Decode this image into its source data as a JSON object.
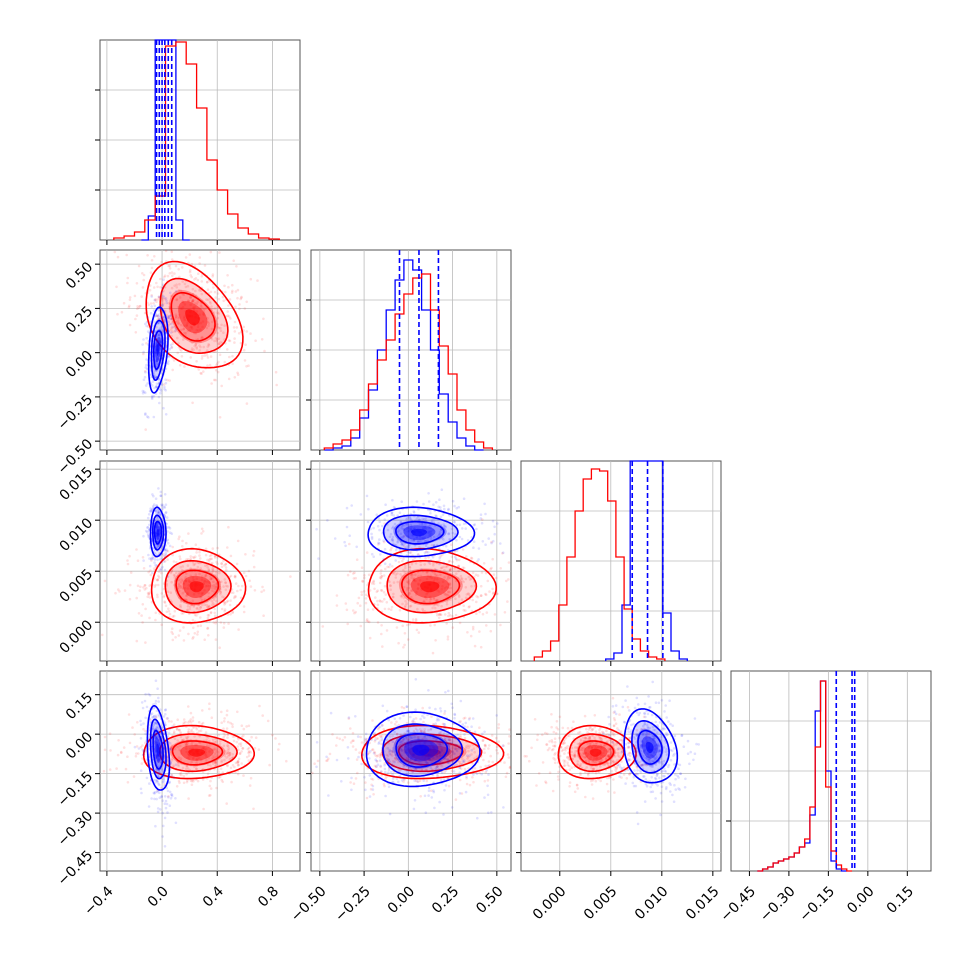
{
  "chart_data": {
    "type": "corner",
    "grid": true,
    "series": [
      {
        "color": "#ff0000"
      },
      {
        "color": "#0000ff"
      }
    ],
    "params": [
      {
        "range": [
          -0.45,
          1.0
        ],
        "ticks": [
          "−0.4",
          "0.0",
          "0.4",
          "0.8"
        ],
        "tick_values": [
          -0.4,
          0.0,
          0.4,
          0.8
        ],
        "hist": {
          "red": {
            "edges_start": -0.35,
            "bin": 0.075,
            "counts": [
              0.01,
              0.02,
              0.04,
              0.1,
              0.22,
              0.97,
              0.99,
              0.88,
              0.66,
              0.4,
              0.25,
              0.13,
              0.06,
              0.03,
              0.01,
              0.005
            ]
          },
          "blue": {
            "edges_start": -0.15,
            "bin": 0.05,
            "counts": [
              0.0,
              0.12,
              1.05,
              1.05,
              1.05,
              0.1,
              0.0
            ]
          }
        },
        "quantiles": [
          -0.04,
          -0.02,
          0.0,
          0.02,
          0.045,
          0.07
        ]
      },
      {
        "range": [
          -0.55,
          0.58
        ],
        "ticks": [
          "−0.50",
          "−0.25",
          "0.00",
          "0.25",
          "0.50"
        ],
        "tick_values": [
          -0.5,
          -0.25,
          0.0,
          0.25,
          0.5
        ],
        "hist": {
          "red": {
            "edges_start": -0.475,
            "bin": 0.05,
            "counts": [
              0.01,
              0.03,
              0.05,
              0.1,
              0.2,
              0.33,
              0.45,
              0.55,
              0.68,
              0.78,
              0.86,
              0.88,
              0.7,
              0.52,
              0.38,
              0.2,
              0.1,
              0.04,
              0.01
            ]
          },
          "blue": {
            "edges_start": -0.475,
            "bin": 0.05,
            "counts": [
              0.0,
              0.01,
              0.02,
              0.06,
              0.16,
              0.3,
              0.5,
              0.7,
              0.85,
              0.95,
              0.9,
              0.7,
              0.5,
              0.28,
              0.14,
              0.06,
              0.02,
              0.0
            ]
          }
        },
        "quantiles": [
          -0.05,
          0.06,
          0.17
        ]
      },
      {
        "range": [
          -0.0038,
          0.0158
        ],
        "ticks": [
          "0.000",
          "0.005",
          "0.010",
          "0.015"
        ],
        "tick_values": [
          0.0,
          0.005,
          0.01,
          0.015
        ],
        "hist": {
          "red": {
            "edges_start": -0.0025,
            "bin": 0.0008,
            "counts": [
              0.02,
              0.05,
              0.1,
              0.28,
              0.52,
              0.75,
              0.91,
              0.96,
              0.95,
              0.8,
              0.52,
              0.26,
              0.11,
              0.05,
              0.02,
              0.01
            ]
          },
          "blue": {
            "edges_start": 0.0045,
            "bin": 0.0008,
            "counts": [
              0.01,
              0.04,
              0.28,
              1.02,
              1.02,
              1.02,
              1.02,
              0.24,
              0.05,
              0.01
            ]
          }
        },
        "quantiles": [
          0.0071,
          0.0086,
          0.0101
        ]
      },
      {
        "range": [
          -0.52,
          0.24
        ],
        "ticks": [
          "−0.45",
          "−0.30",
          "−0.15",
          "0.00",
          "0.15"
        ],
        "tick_values": [
          -0.45,
          -0.3,
          -0.15,
          0.0,
          0.15
        ],
        "hist": {
          "red": {
            "edges_start": -0.42,
            "bin": 0.02,
            "counts": [
              0.0,
              0.01,
              0.02,
              0.04,
              0.05,
              0.06,
              0.07,
              0.09,
              0.12,
              0.16,
              0.32,
              0.62,
              0.95,
              0.42,
              0.1,
              0.03,
              0.01,
              0.0
            ]
          },
          "blue": {
            "edges_start": -0.42,
            "bin": 0.02,
            "counts": [
              0.0,
              0.01,
              0.02,
              0.04,
              0.05,
              0.06,
              0.07,
              0.09,
              0.12,
              0.14,
              0.28,
              0.8,
              0.95,
              0.5,
              0.05,
              0.01,
              0.0
            ]
          }
        },
        "quantiles": [
          -0.12,
          -0.06,
          -0.05
        ]
      }
    ],
    "pairs": [
      {
        "row": 1,
        "col": 0,
        "red": {
          "center": [
            0.22,
            0.2
          ],
          "sd": [
            0.175,
            0.15
          ],
          "rho": -0.35
        },
        "blue": {
          "center": [
            -0.03,
            0.02
          ],
          "sd": [
            0.035,
            0.12
          ],
          "rho": 0.3
        }
      },
      {
        "row": 2,
        "col": 0,
        "red": {
          "center": [
            0.25,
            0.0035
          ],
          "sd": [
            0.17,
            0.0018
          ],
          "rho": 0.0
        },
        "blue": {
          "center": [
            -0.03,
            0.0088
          ],
          "sd": [
            0.028,
            0.0012
          ],
          "rho": 0.0
        }
      },
      {
        "row": 2,
        "col": 1,
        "red": {
          "center": [
            0.12,
            0.0035
          ],
          "sd": [
            0.18,
            0.0018
          ],
          "rho": 0.0
        },
        "blue": {
          "center": [
            0.06,
            0.0088
          ],
          "sd": [
            0.15,
            0.0012
          ],
          "rho": 0.0
        }
      },
      {
        "row": 3,
        "col": 0,
        "red": {
          "center": [
            0.25,
            -0.07
          ],
          "sd": [
            0.2,
            0.05
          ],
          "rho": 0.0
        },
        "blue": {
          "center": [
            -0.03,
            -0.06
          ],
          "sd": [
            0.04,
            0.08
          ],
          "rho": -0.3
        }
      },
      {
        "row": 3,
        "col": 1,
        "red": {
          "center": [
            0.12,
            -0.07
          ],
          "sd": [
            0.2,
            0.05
          ],
          "rho": 0.0
        },
        "blue": {
          "center": [
            0.07,
            -0.06
          ],
          "sd": [
            0.16,
            0.07
          ],
          "rho": 0.0
        }
      },
      {
        "row": 3,
        "col": 2,
        "red": {
          "center": [
            0.0035,
            -0.07
          ],
          "sd": [
            0.0019,
            0.05
          ],
          "rho": 0.0
        },
        "blue": {
          "center": [
            0.0088,
            -0.05
          ],
          "sd": [
            0.0013,
            0.07
          ],
          "rho": -0.2
        }
      }
    ]
  }
}
